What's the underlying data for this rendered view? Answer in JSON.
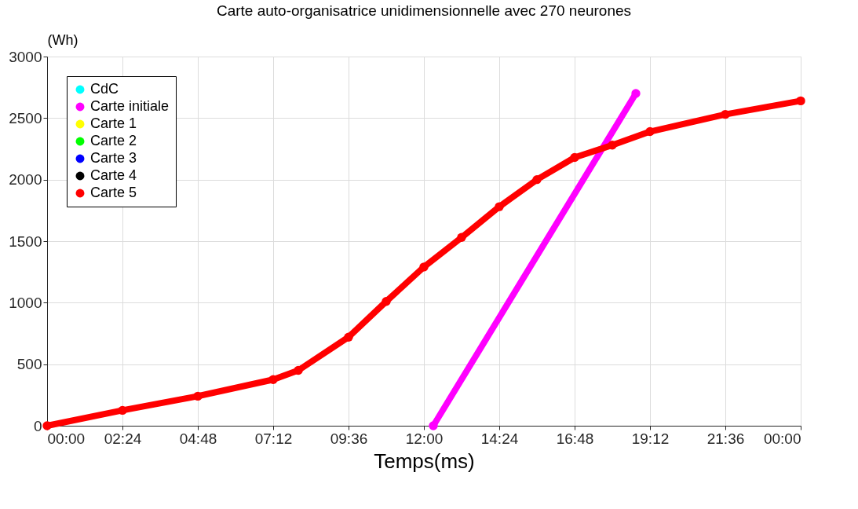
{
  "chart_data": {
    "type": "line",
    "title": "Carte auto-organisatrice unidimensionnelle avec 270 neurones",
    "xlabel": "Temps(ms)",
    "ylabel": "(Wh)",
    "xlim": [
      0,
      24
    ],
    "xticks": [
      {
        "value": 0,
        "label": "00:00"
      },
      {
        "value": 2.4,
        "label": "02:24"
      },
      {
        "value": 4.8,
        "label": "04:48"
      },
      {
        "value": 7.2,
        "label": "07:12"
      },
      {
        "value": 9.6,
        "label": "09:36"
      },
      {
        "value": 12,
        "label": "12:00"
      },
      {
        "value": 14.4,
        "label": "14:24"
      },
      {
        "value": 16.8,
        "label": "16:48"
      },
      {
        "value": 19.2,
        "label": "19:12"
      },
      {
        "value": 21.6,
        "label": "21:36"
      },
      {
        "value": 24,
        "label": "00:00"
      }
    ],
    "ylim": [
      0,
      3000
    ],
    "yticks": [
      0,
      500,
      1000,
      1500,
      2000,
      2500,
      3000
    ],
    "grid": true,
    "legend": "top left",
    "marker": "circle",
    "x": [
      0,
      2.4,
      4.8,
      7.2,
      8,
      9.6,
      10.8,
      12,
      13.2,
      14.4,
      15.6,
      16.8,
      18,
      19.2,
      21.6,
      24
    ],
    "series": [
      {
        "name": "CdC",
        "type": "scatter",
        "color": "#00ffff",
        "values": [
          null,
          null,
          null,
          null,
          null,
          null,
          null,
          null,
          null,
          null,
          null,
          null,
          null,
          null,
          null,
          null
        ]
      },
      {
        "name": "Carte initiale",
        "color": "#ff00ff",
        "x": [
          12.3,
          18.75
        ],
        "values": [
          0,
          2700
        ]
      },
      {
        "name": "Carte 1",
        "color": "#ffff00",
        "values": [
          null,
          null,
          null,
          null,
          null,
          null,
          null,
          null,
          null,
          null,
          null,
          null,
          null,
          null,
          null,
          null
        ]
      },
      {
        "name": "Carte 2",
        "color": "#00ff00",
        "values": [
          null,
          null,
          null,
          null,
          null,
          null,
          null,
          null,
          null,
          null,
          null,
          null,
          null,
          null,
          null,
          null
        ]
      },
      {
        "name": "Carte 3",
        "color": "#0000ff",
        "values": [
          null,
          null,
          null,
          null,
          null,
          null,
          null,
          null,
          null,
          null,
          null,
          null,
          null,
          null,
          null,
          null
        ]
      },
      {
        "name": "Carte 4",
        "color": "#000000",
        "values": [
          null,
          null,
          null,
          null,
          null,
          null,
          null,
          null,
          null,
          null,
          null,
          null,
          null,
          null,
          null,
          null
        ]
      },
      {
        "name": "Carte 5",
        "color": "#ff0000",
        "values": [
          0,
          125,
          240,
          375,
          450,
          720,
          1010,
          1290,
          1530,
          1780,
          2000,
          2180,
          2280,
          2390,
          2530,
          2640
        ]
      }
    ]
  }
}
